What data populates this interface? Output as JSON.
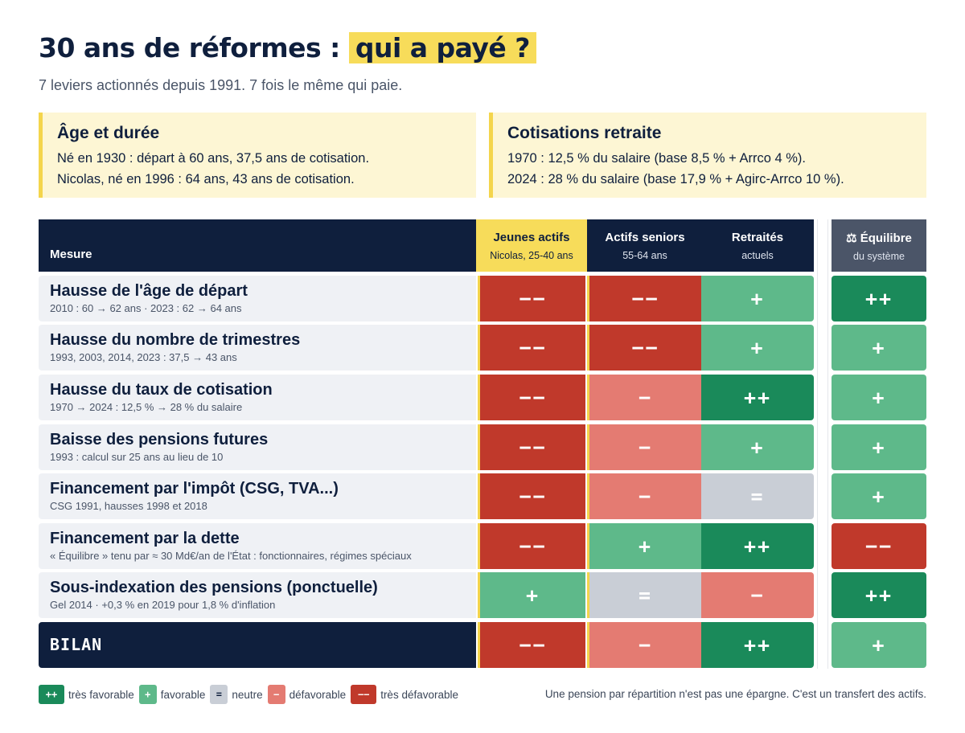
{
  "header": {
    "title_main": "30 ans de réformes :",
    "title_highlight": "qui a payé ?",
    "subtitle": "7 leviers actionnés depuis 1991. 7 fois le même qui paie."
  },
  "cards": [
    {
      "title": "Âge et durée",
      "lines": [
        "Né en 1930 : départ à 60 ans, 37,5 ans de cotisation.",
        "Nicolas, né en 1996 : 64 ans, 43 ans de cotisation."
      ]
    },
    {
      "title": "Cotisations retraite",
      "lines": [
        "1970 : 12,5 % du salaire (base 8,5 % + Arrco 4 %).",
        "2024 : 28 % du salaire (base 17,9 % + Agirc-Arrco 10 %)."
      ]
    }
  ],
  "table": {
    "measure_header": "Mesure",
    "columns": [
      {
        "title": "Jeunes actifs",
        "sub": "Nicolas, 25-40 ans"
      },
      {
        "title": "Actifs seniors",
        "sub": "55-64 ans"
      },
      {
        "title": "Retraités",
        "sub": "actuels"
      },
      {
        "title": "⚖ Équilibre",
        "sub": "du système"
      }
    ],
    "rows": [
      {
        "measure": "Hausse de l'âge de départ",
        "detail": "2010 : 60 → 62 ans · 2023 : 62 → 64 ans",
        "values": [
          "−−",
          "−−",
          "+",
          "++"
        ],
        "levels": [
          "vn",
          "vn",
          "p",
          "vp"
        ]
      },
      {
        "measure": "Hausse du nombre de trimestres",
        "detail": "1993, 2003, 2014, 2023 : 37,5 → 43 ans",
        "values": [
          "−−",
          "−−",
          "+",
          "+"
        ],
        "levels": [
          "vn",
          "vn",
          "p",
          "p"
        ]
      },
      {
        "measure": "Hausse du taux de cotisation",
        "detail": "1970 → 2024 : 12,5 % → 28 % du salaire",
        "values": [
          "−−",
          "−",
          "++",
          "+"
        ],
        "levels": [
          "vn",
          "n",
          "vp",
          "p"
        ]
      },
      {
        "measure": "Baisse des pensions futures",
        "detail": "1993 : calcul sur 25 ans au lieu de 10",
        "values": [
          "−−",
          "−",
          "+",
          "+"
        ],
        "levels": [
          "vn",
          "n",
          "p",
          "p"
        ]
      },
      {
        "measure": "Financement par l'impôt (CSG, TVA...)",
        "detail": "CSG 1991, hausses 1998 et 2018",
        "values": [
          "−−",
          "−",
          "=",
          "+"
        ],
        "levels": [
          "vn",
          "n",
          "z",
          "p"
        ]
      },
      {
        "measure": "Financement par la dette",
        "detail": "« Équilibre » tenu par ≈ 30 Md€/an de l'État : fonctionnaires, régimes spéciaux",
        "values": [
          "−−",
          "+",
          "++",
          "−−"
        ],
        "levels": [
          "vn",
          "p",
          "vp",
          "vn"
        ]
      },
      {
        "measure": "Sous-indexation des pensions (ponctuelle)",
        "detail": "Gel 2014 · +0,3 % en 2019 pour 1,8 % d'inflation",
        "values": [
          "+",
          "=",
          "−",
          "++"
        ],
        "levels": [
          "p",
          "z",
          "n",
          "vp"
        ]
      }
    ],
    "bilan": {
      "label": "BILAN",
      "values": [
        "−−",
        "−",
        "++",
        "+"
      ],
      "levels": [
        "vn",
        "n",
        "vp",
        "p"
      ]
    }
  },
  "legend": [
    {
      "symbol": "++",
      "label": "très favorable",
      "level": "vp"
    },
    {
      "symbol": "+",
      "label": "favorable",
      "level": "p"
    },
    {
      "symbol": "=",
      "label": "neutre",
      "level": "z"
    },
    {
      "symbol": "−",
      "label": "défavorable",
      "level": "n"
    },
    {
      "symbol": "−−",
      "label": "très défavorable",
      "level": "vn"
    }
  ],
  "footer_note": "Une pension par répartition n'est pas une épargne. C'est un transfert des actifs.",
  "colors": {
    "very_unfavorable": "#c0392b",
    "unfavorable": "#e47b72",
    "neutral": "#c9ced6",
    "favorable": "#5eb98a",
    "very_favorable": "#1a8a5a",
    "navy": "#0f1f3d",
    "highlight": "#f7dc5a"
  }
}
